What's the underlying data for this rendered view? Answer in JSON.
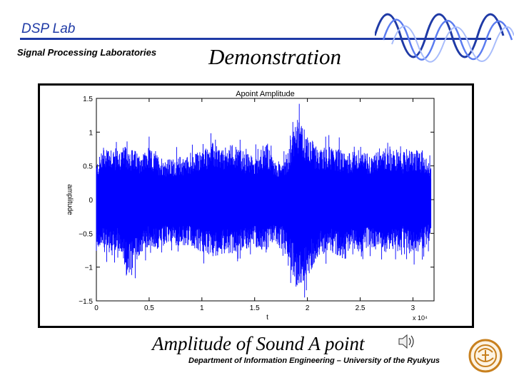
{
  "header": {
    "brand": "DSP Lab",
    "subtitle": "Signal Processing Laboratories",
    "slide_title": "Demonstration"
  },
  "caption": "Amplitude of Sound A point",
  "footer": "Department of Information Engineering – University of the Ryukyus",
  "colors": {
    "accent": "#1f3aa6",
    "signal": "#0000ff"
  },
  "icons": {
    "speaker": "speaker-icon",
    "seal": "university-seal-icon",
    "waves": "sine-waves-logo"
  },
  "chart_data": {
    "type": "line",
    "title": "Apoint Amplitude",
    "xlabel": "t",
    "ylabel": "amplitude",
    "x_multiplier": "x 10⁴",
    "xlim": [
      0,
      3.2
    ],
    "ylim": [
      -1.5,
      1.5
    ],
    "x_ticks": [
      "0",
      "0.5",
      "1",
      "1.5",
      "2",
      "2.5",
      "3"
    ],
    "x_tick_values": [
      0,
      0.5,
      1,
      1.5,
      2,
      2.5,
      3
    ],
    "y_ticks": [
      "1.5",
      "1",
      "0.5",
      "0",
      "−0.5",
      "−1",
      "−1.5"
    ],
    "y_tick_values": [
      1.5,
      1,
      0.5,
      0,
      -0.5,
      -1,
      -1.5
    ],
    "grid": false,
    "signal_end": 3.17,
    "envelope": {
      "x": [
        0,
        0.1,
        0.2,
        0.3,
        0.4,
        0.5,
        0.6,
        0.7,
        0.8,
        0.9,
        1.0,
        1.1,
        1.2,
        1.3,
        1.4,
        1.5,
        1.6,
        1.7,
        1.8,
        1.9,
        2.0,
        2.1,
        2.2,
        2.3,
        2.4,
        2.5,
        2.6,
        2.7,
        2.8,
        2.9,
        3.0,
        3.1,
        3.17
      ],
      "upper": [
        0.55,
        0.85,
        0.75,
        0.8,
        0.7,
        0.75,
        0.65,
        0.6,
        0.65,
        0.65,
        0.75,
        0.85,
        0.75,
        0.85,
        0.7,
        0.65,
        0.85,
        0.55,
        0.65,
        1.2,
        1.0,
        0.75,
        0.8,
        0.75,
        0.7,
        0.75,
        0.65,
        0.8,
        0.75,
        0.7,
        0.75,
        0.7,
        0.5
      ],
      "lower": [
        -0.7,
        -0.8,
        -0.75,
        -1.2,
        -0.85,
        -0.7,
        -0.75,
        -0.65,
        -0.7,
        -0.7,
        -0.8,
        -0.85,
        -0.8,
        -0.8,
        -0.75,
        -0.7,
        -0.8,
        -0.65,
        -0.75,
        -1.4,
        -1.1,
        -0.85,
        -0.75,
        -0.85,
        -0.75,
        -0.8,
        -0.7,
        -0.8,
        -0.75,
        -0.7,
        -0.8,
        -0.75,
        -0.6
      ]
    }
  }
}
